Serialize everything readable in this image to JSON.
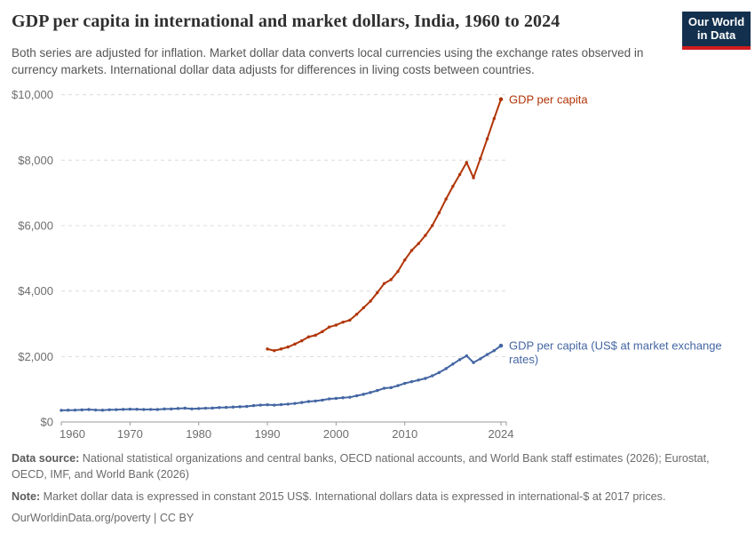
{
  "header": {
    "title": "GDP per capita in international and market dollars, India, 1960 to 2024",
    "subtitle": "Both series are adjusted for inflation. Market dollar data converts local currencies using the exchange rates observed in currency markets. International dollar data adjusts for differences in living costs between countries.",
    "logo": {
      "line1": "Our World",
      "line2": "in Data"
    }
  },
  "chart_data": {
    "type": "line",
    "title": "GDP per capita in international and market dollars, India, 1960 to 2024",
    "xlabel": "",
    "ylabel": "",
    "xlim": [
      1960,
      2024
    ],
    "ylim": [
      0,
      10000
    ],
    "grid": "horizontal-dashed",
    "legend_position": "end-of-line labels",
    "xticks": [
      1960,
      1970,
      1980,
      1990,
      2000,
      2010,
      2024
    ],
    "xtick_labels": [
      "1960",
      "1970",
      "1980",
      "1990",
      "2000",
      "2010",
      "2024"
    ],
    "yticks": [
      0,
      2000,
      4000,
      6000,
      8000,
      10000
    ],
    "ytick_labels": [
      "$0",
      "$2,000",
      "$4,000",
      "$6,000",
      "$8,000",
      "$10,000"
    ],
    "colors": {
      "grid": "#dcdcdc",
      "axis": "#9a9a9a",
      "tick_text": "#6e6e6e"
    },
    "series": [
      {
        "name": "GDP per capita",
        "label_lines": [
          "GDP per capita"
        ],
        "color": "#b13507",
        "unit": "international-$ at 2017 prices",
        "start_year": 1990,
        "values": [
          2230,
          2180,
          2230,
          2290,
          2380,
          2480,
          2600,
          2650,
          2760,
          2900,
          2960,
          3050,
          3110,
          3290,
          3490,
          3690,
          3950,
          4230,
          4350,
          4600,
          4950,
          5240,
          5450,
          5700,
          6000,
          6390,
          6810,
          7200,
          7560,
          7930,
          7460,
          8050,
          8650,
          9270,
          9860
        ]
      },
      {
        "name": "GDP per capita (US$ at market exchange rates)",
        "label_lines": [
          "GDP per capita (US$ at market exchange",
          "rates)"
        ],
        "color": "#4466a3",
        "unit": "constant 2015 US$",
        "start_year": 1960,
        "values": [
          355,
          360,
          362,
          370,
          380,
          365,
          360,
          372,
          375,
          385,
          390,
          388,
          380,
          382,
          380,
          398,
          398,
          412,
          422,
          400,
          410,
          420,
          425,
          440,
          445,
          455,
          465,
          475,
          500,
          515,
          525,
          515,
          530,
          545,
          565,
          595,
          625,
          640,
          668,
          705,
          720,
          740,
          755,
          800,
          845,
          900,
          960,
          1030,
          1050,
          1110,
          1180,
          1230,
          1280,
          1330,
          1410,
          1510,
          1630,
          1770,
          1905,
          2020,
          1815,
          1930,
          2060,
          2180,
          2330
        ]
      }
    ]
  },
  "footer": {
    "data_source_label": "Data source:",
    "data_source": " National statistical organizations and central banks, OECD national accounts, and World Bank staff estimates (2026); Eurostat, OECD, IMF, and World Bank (2026)",
    "note_label": "Note:",
    "note": " Market dollar data is expressed in constant 2015 US$. International dollars data is expressed in international-$ at 2017 prices.",
    "link": "OurWorldinData.org/poverty | CC BY"
  }
}
